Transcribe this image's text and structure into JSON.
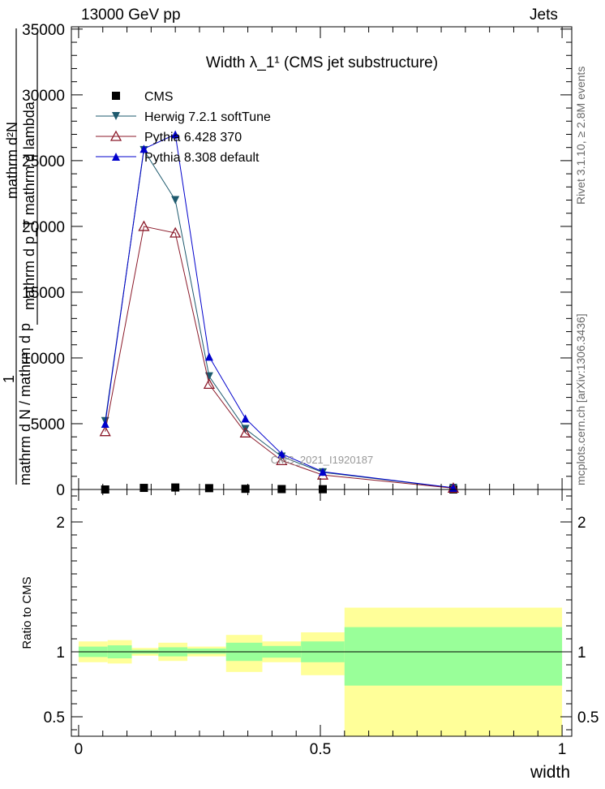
{
  "header": {
    "left": "13000 GeV pp",
    "right": "Jets"
  },
  "side_labels": {
    "rivet": "Rivet 3.1.10, ≥ 2.8M events",
    "mcplots": "mcplots.cern.ch [arXiv:1306.3436]"
  },
  "watermark": "CMS_2021_I1920187",
  "ylabel_main": {
    "numerator_1": "1",
    "denominator_1": "mathrm d N / mathrm d p",
    "numerator_2": "mathrm d²N",
    "denominator_2": "mathrm d p_T mathrm d lambda"
  },
  "colors": {
    "cms": "#000000",
    "herwig": "#1e5a6e",
    "pythia6": "#8b1a2a",
    "pythia8": "#0000cc",
    "band_inner": "#99ff99",
    "band_outer": "#ffff99"
  },
  "chart_data": [
    {
      "type": "line",
      "panel": "main",
      "title": "Width λ_1¹ (CMS jet substructure)",
      "xlim": [
        0,
        1
      ],
      "ylim": [
        0,
        35000
      ],
      "y_ticks": [
        0,
        5000,
        10000,
        15000,
        20000,
        25000,
        30000,
        35000
      ],
      "y_tick_labels": [
        "0",
        "5000",
        "10000",
        "15000",
        "20000",
        "25000",
        "30000",
        "35000"
      ],
      "legend_position": "top-left",
      "series": [
        {
          "name": "CMS",
          "marker": "square",
          "x": [
            0.055,
            0.135,
            0.2,
            0.27,
            0.345,
            0.42,
            0.505,
            0.775
          ],
          "y": [
            0,
            120,
            150,
            100,
            50,
            30,
            20,
            5
          ]
        },
        {
          "name": "Herwig 7.2.1 softTune",
          "marker": "triangle-down",
          "x": [
            0.055,
            0.135,
            0.2,
            0.27,
            0.345,
            0.42,
            0.505,
            0.775
          ],
          "y": [
            5200,
            25800,
            22000,
            8600,
            4600,
            2500,
            1300,
            120
          ]
        },
        {
          "name": "Pythia 6.428 370",
          "marker": "open-triangle",
          "x": [
            0.055,
            0.135,
            0.2,
            0.27,
            0.345,
            0.42,
            0.505,
            0.775
          ],
          "y": [
            4400,
            20000,
            19500,
            8000,
            4300,
            2200,
            1100,
            100
          ]
        },
        {
          "name": "Pythia 8.308 default",
          "marker": "triangle-up",
          "x": [
            0.055,
            0.135,
            0.2,
            0.27,
            0.345,
            0.42,
            0.505,
            0.775
          ],
          "y": [
            5000,
            25900,
            27000,
            10100,
            5400,
            2700,
            1350,
            130
          ]
        }
      ]
    },
    {
      "type": "area",
      "panel": "ratio",
      "ylabel": "Ratio to CMS",
      "xlabel": "width",
      "xlim": [
        0,
        1
      ],
      "ylim": [
        0.35,
        2.25
      ],
      "x_ticks": [
        0,
        0.5,
        1
      ],
      "x_tick_labels": [
        "0",
        "0.5",
        "1"
      ],
      "y_ticks": [
        0.5,
        1,
        2
      ],
      "y_tick_labels": [
        "0.5",
        "1",
        "2"
      ],
      "bins": [
        {
          "x_low": 0.0,
          "x_high": 0.06,
          "inner": [
            0.96,
            1.04
          ],
          "outer": [
            0.92,
            1.08
          ]
        },
        {
          "x_low": 0.06,
          "x_high": 0.11,
          "inner": [
            0.95,
            1.05
          ],
          "outer": [
            0.91,
            1.09
          ]
        },
        {
          "x_low": 0.11,
          "x_high": 0.165,
          "inner": [
            0.985,
            1.015
          ],
          "outer": [
            0.97,
            1.03
          ]
        },
        {
          "x_low": 0.165,
          "x_high": 0.225,
          "inner": [
            0.965,
            1.035
          ],
          "outer": [
            0.93,
            1.07
          ]
        },
        {
          "x_low": 0.225,
          "x_high": 0.305,
          "inner": [
            0.985,
            1.025
          ],
          "outer": [
            0.965,
            1.04
          ]
        },
        {
          "x_low": 0.305,
          "x_high": 0.38,
          "inner": [
            0.93,
            1.07
          ],
          "outer": [
            0.845,
            1.13
          ]
        },
        {
          "x_low": 0.38,
          "x_high": 0.46,
          "inner": [
            0.955,
            1.045
          ],
          "outer": [
            0.92,
            1.08
          ]
        },
        {
          "x_low": 0.46,
          "x_high": 0.55,
          "inner": [
            0.92,
            1.08
          ],
          "outer": [
            0.82,
            1.15
          ]
        },
        {
          "x_low": 0.55,
          "x_high": 1.0,
          "inner": [
            0.74,
            1.19
          ],
          "outer": [
            0.35,
            1.34
          ]
        }
      ]
    }
  ]
}
